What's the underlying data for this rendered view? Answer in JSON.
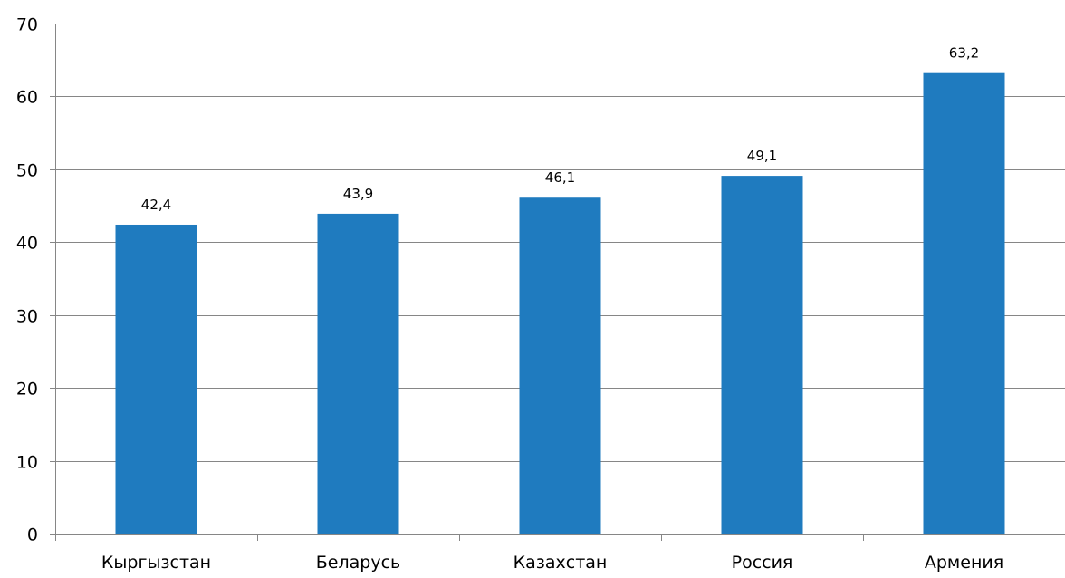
{
  "chart_data": {
    "type": "bar",
    "categories": [
      "Кыргызстан",
      "Беларусь",
      "Казахстан",
      "Россия",
      "Армения"
    ],
    "values": [
      42.4,
      43.9,
      46.1,
      49.1,
      63.2
    ],
    "data_labels": [
      "42,4",
      "43,9",
      "46,1",
      "49,1",
      "63,2"
    ],
    "y_ticks": [
      "0",
      "10",
      "20",
      "30",
      "40",
      "50",
      "60",
      "70"
    ],
    "ylim": [
      0,
      70
    ],
    "grid": true,
    "legend": "none",
    "bar_color": "#1f7bbf"
  }
}
